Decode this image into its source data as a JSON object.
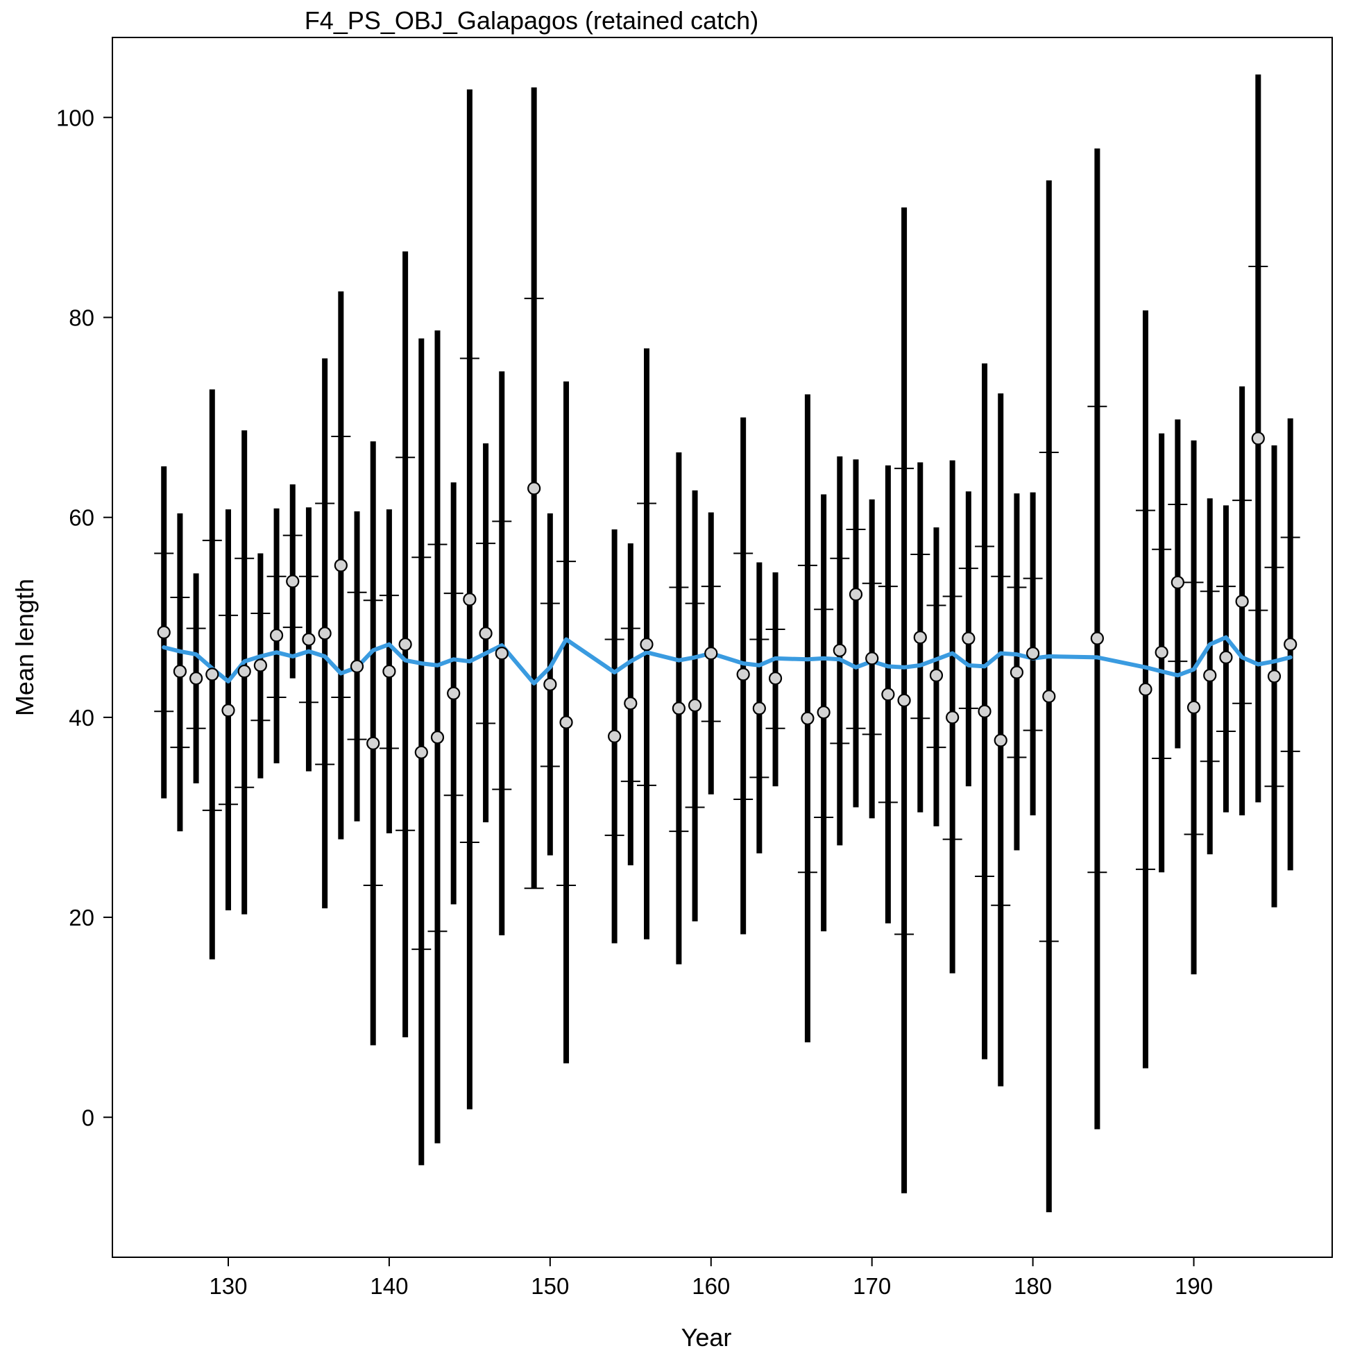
{
  "chart_data": {
    "type": "scatter",
    "title": "F4_PS_OBJ_Galapagos (retained catch)",
    "xlabel": "Year",
    "ylabel": "Mean length",
    "xlim": [
      122.8,
      198.6
    ],
    "ylim": [
      -14,
      108
    ],
    "xticks": [
      130,
      140,
      150,
      160,
      170,
      180,
      190
    ],
    "yticks": [
      0,
      20,
      40,
      60,
      80,
      100
    ],
    "grid": false,
    "colors": {
      "observed_fill": "#d3d3d3",
      "error_bar": "#000000",
      "expected_line": "#3a9be0"
    },
    "series": [
      {
        "type": "errorbar",
        "x": [
          126,
          127,
          128,
          129,
          130,
          131,
          132,
          133,
          134,
          135,
          136,
          137,
          138,
          139,
          140,
          141,
          142,
          143,
          144,
          145,
          146,
          147,
          149,
          150,
          151,
          154,
          155,
          156,
          158,
          159,
          160,
          162,
          163,
          164,
          166,
          167,
          168,
          169,
          170,
          171,
          172,
          173,
          174,
          175,
          176,
          177,
          178,
          179,
          180,
          181,
          184,
          187,
          188,
          189,
          190,
          191,
          192,
          193,
          194,
          195,
          196
        ],
        "y": [
          48.5,
          44.6,
          43.9,
          44.3,
          40.7,
          44.6,
          45.2,
          48.2,
          53.6,
          47.8,
          48.4,
          55.2,
          45.1,
          37.4,
          44.6,
          47.3,
          36.5,
          38.0,
          42.4,
          51.8,
          48.4,
          46.4,
          62.9,
          43.3,
          39.5,
          38.1,
          41.4,
          47.3,
          40.9,
          41.2,
          46.4,
          44.3,
          40.9,
          43.9,
          39.9,
          40.5,
          46.7,
          52.3,
          45.9,
          42.3,
          41.7,
          48.0,
          44.2,
          40.0,
          47.9,
          40.6,
          37.7,
          44.5,
          46.4,
          42.1,
          47.9,
          42.8,
          46.5,
          53.5,
          41.0,
          44.2,
          46.0,
          51.6,
          67.9,
          44.1,
          47.3
        ],
        "lo": [
          31.9,
          28.6,
          33.4,
          15.8,
          20.7,
          20.3,
          33.9,
          35.4,
          43.9,
          34.6,
          20.9,
          27.8,
          29.6,
          7.2,
          28.4,
          8.0,
          -4.8,
          -2.6,
          21.3,
          0.8,
          29.5,
          18.2,
          22.9,
          26.2,
          5.4,
          17.4,
          25.2,
          17.8,
          15.3,
          19.6,
          32.3,
          18.3,
          26.4,
          33.1,
          7.5,
          18.6,
          27.2,
          31.0,
          29.9,
          19.4,
          -7.6,
          30.5,
          29.1,
          14.4,
          33.1,
          5.8,
          3.1,
          26.7,
          30.2,
          -9.5,
          -1.2,
          4.9,
          24.5,
          36.9,
          14.3,
          26.3,
          30.5,
          30.2,
          31.5,
          21.0,
          24.7
        ],
        "hi": [
          65.1,
          60.4,
          54.4,
          72.8,
          60.8,
          68.7,
          56.4,
          60.9,
          63.3,
          61.0,
          75.9,
          82.6,
          60.6,
          67.6,
          60.8,
          86.6,
          77.9,
          78.7,
          63.5,
          102.8,
          67.4,
          74.6,
          103.0,
          60.4,
          73.6,
          58.8,
          57.4,
          76.9,
          66.5,
          62.7,
          60.5,
          70.0,
          55.5,
          54.5,
          72.3,
          62.3,
          66.1,
          65.8,
          61.8,
          65.2,
          91.0,
          65.5,
          59.0,
          65.7,
          62.6,
          75.4,
          72.4,
          62.4,
          62.5,
          93.7,
          96.9,
          80.7,
          68.4,
          69.8,
          67.7,
          61.9,
          61.2,
          73.1,
          104.3,
          67.2,
          69.9
        ],
        "lo_inner": [
          40.6,
          37.0,
          38.9,
          30.7,
          31.3,
          33.0,
          39.7,
          42.0,
          49.0,
          41.5,
          35.3,
          42.0,
          37.8,
          23.2,
          36.9,
          28.7,
          16.8,
          18.6,
          32.2,
          27.5,
          39.4,
          32.8,
          22.9,
          35.1,
          23.2,
          28.2,
          33.6,
          33.2,
          28.6,
          31.0,
          39.6,
          31.8,
          34.0,
          38.9,
          24.5,
          30.0,
          37.4,
          38.9,
          38.3,
          31.5,
          18.3,
          39.9,
          37.0,
          27.8,
          40.9,
          24.1,
          21.2,
          36.0,
          38.7,
          17.6,
          24.5,
          24.8,
          35.9,
          45.6,
          28.3,
          35.6,
          38.6,
          41.4,
          50.7,
          33.1,
          36.6
        ],
        "hi_inner": [
          56.4,
          52.0,
          48.9,
          57.7,
          50.2,
          55.9,
          50.4,
          54.1,
          58.2,
          54.1,
          61.4,
          68.1,
          52.5,
          51.7,
          52.2,
          66.0,
          56.0,
          57.3,
          52.4,
          75.9,
          57.4,
          59.6,
          81.9,
          51.4,
          55.6,
          47.8,
          48.9,
          61.4,
          53.0,
          51.4,
          53.1,
          56.4,
          47.8,
          48.8,
          55.2,
          50.8,
          55.9,
          58.8,
          53.4,
          53.1,
          64.9,
          56.3,
          51.2,
          52.1,
          54.9,
          57.1,
          54.1,
          53.0,
          53.9,
          66.5,
          71.1,
          60.7,
          56.8,
          61.3,
          53.5,
          52.6,
          53.1,
          61.7,
          85.1,
          55.0,
          58.0
        ]
      },
      {
        "type": "line",
        "x": [
          126,
          127,
          128,
          129,
          130,
          131,
          132,
          133,
          134,
          135,
          136,
          137,
          138,
          139,
          140,
          141,
          142,
          143,
          144,
          145,
          146,
          147,
          149,
          150,
          151,
          154,
          155,
          156,
          158,
          159,
          160,
          162,
          163,
          164,
          166,
          167,
          168,
          169,
          170,
          171,
          172,
          173,
          174,
          175,
          176,
          177,
          178,
          179,
          180,
          181,
          184,
          187,
          188,
          189,
          190,
          191,
          192,
          193,
          194,
          195,
          196
        ],
        "y": [
          47.0,
          46.6,
          46.3,
          44.9,
          43.6,
          45.6,
          46.1,
          46.5,
          46.1,
          46.6,
          46.1,
          44.4,
          45.0,
          46.7,
          47.3,
          45.7,
          45.4,
          45.2,
          45.8,
          45.6,
          46.4,
          47.2,
          43.4,
          45.0,
          47.8,
          44.5,
          45.6,
          46.5,
          45.7,
          46.0,
          46.4,
          45.4,
          45.2,
          45.9,
          45.8,
          45.9,
          45.8,
          45.0,
          45.6,
          45.1,
          45.0,
          45.2,
          45.8,
          46.4,
          45.2,
          45.1,
          46.4,
          46.3,
          45.9,
          46.1,
          46.0,
          45.0,
          44.6,
          44.2,
          44.8,
          47.3,
          48.0,
          46.0,
          45.3,
          45.6,
          46.0
        ]
      }
    ]
  }
}
